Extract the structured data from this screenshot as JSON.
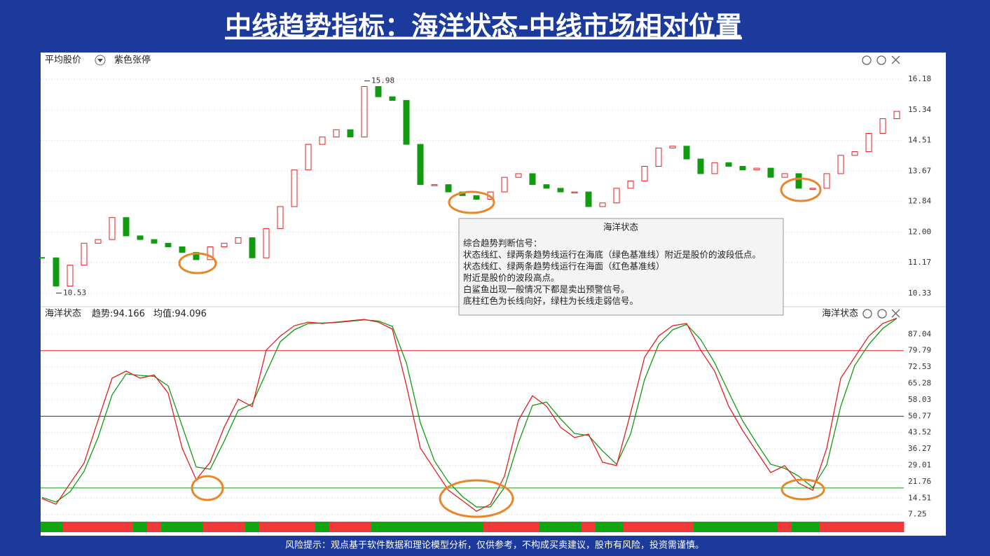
{
  "title": "中线趋势指标：海洋状态-中线市场相对位置",
  "footer": "风险提示：观点基于软件数据和理论模型分析，仅供参考，不构成买卖建议，股市有风险，投资需谨慎。",
  "tooltip": {
    "title": "海洋状态",
    "lines": [
      "综合趋势判断信号：",
      "状态线红、绿两条趋势线运行在海底（绿色基准线）附近是股价的波段低点。",
      "状态线红、绿两条趋势线运行在海面（红色基准线）",
      "附近是股价的波段高点。",
      "白鲨鱼出现一般情况下都是卖出预警信号。",
      "底柱红色为长线向好，绿柱为长线走弱信号。"
    ]
  },
  "chart_data": [
    {
      "type": "candlestick",
      "title": "平均股价",
      "subtitle": "紫色张停",
      "up_color": "#e02020",
      "down_color": "#129a12",
      "grid": true,
      "values": [
        11.3,
        10.53,
        11.1,
        11.7,
        11.8,
        12.4,
        11.9,
        11.8,
        11.7,
        11.6,
        11.45,
        11.25,
        11.6,
        11.7,
        11.85,
        11.3,
        12.1,
        12.7,
        13.7,
        14.4,
        14.6,
        14.8,
        14.6,
        15.98,
        15.7,
        15.6,
        14.4,
        13.3,
        13.3,
        13.1,
        13.0,
        12.9,
        13.1,
        13.5,
        13.6,
        13.3,
        13.2,
        13.1,
        13.1,
        12.7,
        12.8,
        13.2,
        13.4,
        13.8,
        14.3,
        14.35,
        14.0,
        13.6,
        13.9,
        13.8,
        13.7,
        13.75,
        13.5,
        13.6,
        13.2,
        13.2,
        13.6,
        14.1,
        14.2,
        14.7,
        15.1,
        15.3
      ],
      "ylim": [
        10.08,
        16.43
      ],
      "yticks": [
        16.18,
        15.34,
        14.51,
        13.67,
        12.84,
        {
          "value": 12,
          "label": "12.00"
        },
        11.17,
        10.33
      ]
    },
    {
      "type": "line",
      "title": "海洋状态",
      "title_right": "海洋状态",
      "separator": ":",
      "grid": true,
      "series": [
        {
          "name": "趋势",
          "color": "#e02020",
          "values": [
            14.3,
            11.8,
            21,
            30,
            49,
            67.6,
            70.7,
            67.6,
            69,
            61,
            36.6,
            22.7,
            30.4,
            45.9,
            58.3,
            55,
            80,
            86.2,
            90.8,
            92.4,
            91.8,
            92.4,
            93,
            93.6,
            92.4,
            89.3,
            64.5,
            36.6,
            27.3,
            18,
            13.4,
            8.7,
            11.8,
            24.2,
            49,
            59.8,
            55.2,
            45.9,
            41.3,
            42.8,
            30.4,
            28.9,
            52.1,
            76.9,
            86.2,
            90.8,
            91.8,
            80,
            70.7,
            55.2,
            44.4,
            35.1,
            25.8,
            28.9,
            21.1,
            18,
            36.6,
            67.6,
            76.9,
            86.2,
            91.8,
            94.166
          ]
        },
        {
          "name": "均值",
          "color": "#129a12",
          "values": [
            14.8,
            12.8,
            17.3,
            26.4,
            41.4,
            60.2,
            69.5,
            68.8,
            68.4,
            64.2,
            46.4,
            28.3,
            27.3,
            39.7,
            53.3,
            56.3,
            70,
            83.7,
            89,
            91.8,
            92,
            92.2,
            92.8,
            93.4,
            92.9,
            90.5,
            74.4,
            47.8,
            31,
            21.7,
            15.2,
            10.6,
            10.6,
            19.2,
            39.1,
            55.5,
            57,
            49.6,
            43.1,
            42.2,
            35.4,
            29.5,
            42.8,
            67,
            82.5,
            89,
            91.4,
            84.7,
            74.4,
            61.4,
            48.7,
            38.8,
            29.5,
            27.7,
            24.2,
            19.2,
            29.2,
            55.2,
            73.2,
            82.5,
            89.6,
            94.096
          ]
        }
      ],
      "reference_lines": [
        {
          "value": 79.79,
          "color": "#e02020"
        },
        {
          "value": 50.77,
          "color": "#333333"
        },
        {
          "value": 19,
          "color": "#129a12"
        }
      ],
      "status_colors": [
        "#f03a3a",
        "#12a512"
      ],
      "ylim": [
        5,
        95.5
      ],
      "yticks": [
        87.04,
        79.79,
        72.53,
        65.28,
        58.03,
        50.77,
        43.52,
        36.27,
        29.01,
        21.76,
        14.51,
        7.25
      ]
    }
  ]
}
